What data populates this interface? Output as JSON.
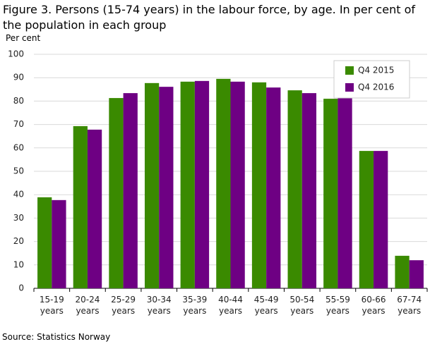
{
  "chart_data": {
    "type": "bar",
    "title": "Figure 3.  Persons (15-74 years) in the labour force, by age. In per cent of the population in each group",
    "y_label": "Per cent",
    "source": "Source: Statistics Norway",
    "categories": [
      "15-19 years",
      "20-24 years",
      "25-29 years",
      "30-34 years",
      "35-39 years",
      "40-44 years",
      "45-49 years",
      "50-54 years",
      "55-59 years",
      "60-66 years",
      "67-74 years"
    ],
    "series": [
      {
        "name": "Q4 2015",
        "color": "#3a8a00",
        "values": [
          38.9,
          69.3,
          81.3,
          87.7,
          88.3,
          89.5,
          88.0,
          84.6,
          81.0,
          58.7,
          13.9
        ]
      },
      {
        "name": "Q4 2016",
        "color": "#6e0083",
        "values": [
          37.7,
          67.8,
          83.4,
          86.1,
          88.6,
          88.3,
          85.8,
          83.4,
          81.6,
          58.7,
          12.0
        ]
      }
    ],
    "ylim": [
      0,
      100
    ],
    "yticks": [
      0,
      10,
      20,
      30,
      40,
      50,
      60,
      70,
      80,
      90,
      100
    ],
    "grid": true,
    "legend": "upper right"
  }
}
